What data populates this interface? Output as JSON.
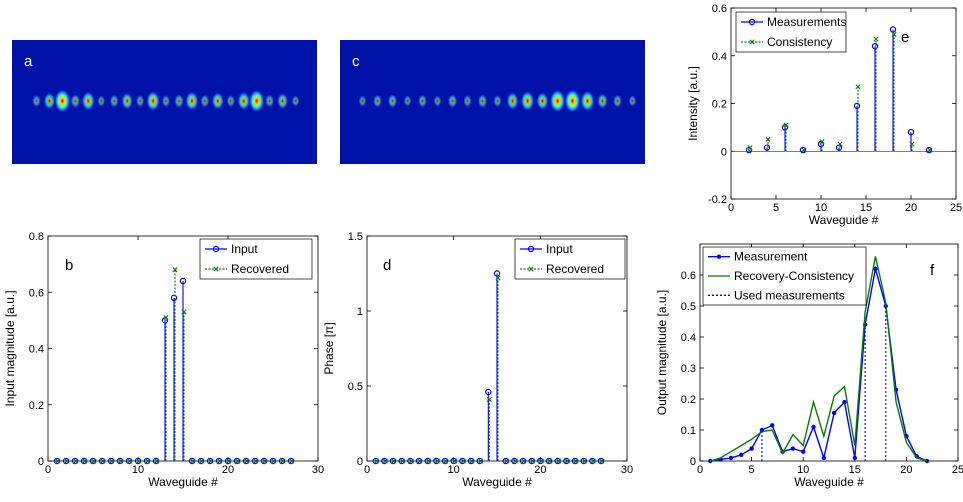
{
  "images": [
    {
      "label": "a",
      "spots": [
        [
          1,
          0.25
        ],
        [
          2,
          0.55
        ],
        [
          3,
          1.0
        ],
        [
          4,
          0.35
        ],
        [
          5,
          0.7
        ],
        [
          6,
          0.2
        ],
        [
          7,
          0.3
        ],
        [
          8,
          0.55
        ],
        [
          9,
          0.25
        ],
        [
          10,
          0.75
        ],
        [
          11,
          0.25
        ],
        [
          12,
          0.35
        ],
        [
          13,
          0.7
        ],
        [
          14,
          0.3
        ],
        [
          15,
          0.6
        ],
        [
          16,
          0.25
        ],
        [
          17,
          0.65
        ],
        [
          18,
          0.95
        ],
        [
          19,
          0.3
        ],
        [
          20,
          0.5
        ],
        [
          21,
          0.2
        ]
      ]
    },
    {
      "label": "c",
      "spots": [
        [
          1,
          0.2
        ],
        [
          2,
          0.3
        ],
        [
          3,
          0.35
        ],
        [
          4,
          0.2
        ],
        [
          5,
          0.3
        ],
        [
          6,
          0.2
        ],
        [
          7,
          0.35
        ],
        [
          8,
          0.25
        ],
        [
          9,
          0.35
        ],
        [
          10,
          0.25
        ],
        [
          11,
          0.6
        ],
        [
          12,
          0.75
        ],
        [
          13,
          0.6
        ],
        [
          14,
          0.95
        ],
        [
          15,
          1.0
        ],
        [
          16,
          0.8
        ],
        [
          17,
          0.45
        ],
        [
          18,
          0.3
        ],
        [
          19,
          0.2
        ]
      ]
    }
  ],
  "chart_data": [
    {
      "panel": "b",
      "type": "stem",
      "xlabel": "Waveguide #",
      "ylabel": "Input magnitude [a.u.]",
      "xlim": [
        0,
        30
      ],
      "ylim": [
        0,
        0.8
      ],
      "xticks": [
        "0",
        "10",
        "20",
        "30"
      ],
      "yticks": [
        "0",
        "0.2",
        "0.4",
        "0.6",
        "0.8"
      ],
      "legend": "top-right",
      "x": [
        1,
        2,
        3,
        4,
        5,
        6,
        7,
        8,
        9,
        10,
        11,
        12,
        13,
        14,
        15,
        16,
        17,
        18,
        19,
        20,
        21,
        22,
        23,
        24,
        25,
        26,
        27
      ],
      "series": [
        {
          "name": "Input",
          "color": "#0000ff",
          "marker": "o",
          "values": [
            0,
            0,
            0,
            0,
            0,
            0,
            0,
            0,
            0,
            0,
            0,
            0,
            0.5,
            0.58,
            0.64,
            0,
            0,
            0,
            0,
            0,
            0,
            0,
            0,
            0,
            0,
            0,
            0
          ]
        },
        {
          "name": "Recovered",
          "color": "#008000",
          "marker": "x",
          "values": [
            0,
            0,
            0,
            0,
            0,
            0,
            0,
            0,
            0,
            0,
            0,
            0,
            0.51,
            0.68,
            0.53,
            0,
            0,
            0,
            0,
            0,
            0,
            0,
            0,
            0,
            0,
            0,
            0
          ]
        }
      ]
    },
    {
      "panel": "d",
      "type": "stem",
      "xlabel": "Waveguide #",
      "ylabel": "Phase [π]",
      "xlim": [
        0,
        30
      ],
      "ylim": [
        0,
        1.5
      ],
      "xticks": [
        "0",
        "10",
        "20",
        "30"
      ],
      "yticks": [
        "0",
        "0.5",
        "1",
        "1.5"
      ],
      "legend": "top-right",
      "x": [
        1,
        2,
        3,
        4,
        5,
        6,
        7,
        8,
        9,
        10,
        11,
        12,
        13,
        14,
        15,
        16,
        17,
        18,
        19,
        20,
        21,
        22,
        23,
        24,
        25,
        26,
        27
      ],
      "series": [
        {
          "name": "Input",
          "color": "#0000ff",
          "marker": "o",
          "values": [
            0,
            0,
            0,
            0,
            0,
            0,
            0,
            0,
            0,
            0,
            0,
            0,
            0,
            0.46,
            1.25,
            0,
            0,
            0,
            0,
            0,
            0,
            0,
            0,
            0,
            0,
            0,
            0
          ]
        },
        {
          "name": "Recovered",
          "color": "#008000",
          "marker": "x",
          "values": [
            0,
            0,
            0,
            0,
            0,
            0,
            0,
            0,
            0,
            0,
            0,
            0,
            0,
            0.41,
            1.22,
            0,
            0,
            0,
            0,
            0,
            0,
            0,
            0,
            0,
            0,
            0,
            0
          ]
        }
      ]
    },
    {
      "panel": "e",
      "type": "stem",
      "xlabel": "Waveguide #",
      "ylabel": "Intensity [a.u.]",
      "xlim": [
        0,
        25
      ],
      "ylim": [
        -0.2,
        0.6
      ],
      "xticks": [
        "0",
        "5",
        "10",
        "15",
        "20",
        "25"
      ],
      "yticks": [
        "-0.2",
        "0",
        "0.2",
        "0.4",
        "0.6"
      ],
      "legend": "top-left",
      "x": [
        2,
        4,
        6,
        8,
        10,
        12,
        14,
        16,
        18,
        20,
        22
      ],
      "series": [
        {
          "name": "Measurements",
          "color": "#0000ff",
          "marker": "o",
          "values": [
            0.005,
            0.015,
            0.1,
            0.005,
            0.03,
            0.015,
            0.19,
            0.44,
            0.51,
            0.08,
            0.005
          ]
        },
        {
          "name": "Consistency",
          "color": "#008000",
          "marker": "x",
          "values": [
            0.015,
            0.05,
            0.11,
            0.005,
            0.04,
            0.03,
            0.27,
            0.47,
            0.49,
            0.03,
            0.005
          ]
        }
      ]
    },
    {
      "panel": "f",
      "type": "line",
      "xlabel": "Waveguide #",
      "ylabel": "Output magnitude [a.u.]",
      "xlim": [
        0,
        25
      ],
      "ylim": [
        0,
        0.7
      ],
      "xticks": [
        "0",
        "5",
        "10",
        "15",
        "20",
        "25"
      ],
      "yticks": [
        "0",
        "0.1",
        "0.2",
        "0.3",
        "0.4",
        "0.5",
        "0.6"
      ],
      "legend": "top-left",
      "x": [
        1,
        2,
        3,
        4,
        5,
        6,
        7,
        8,
        9,
        10,
        11,
        12,
        13,
        14,
        15,
        16,
        17,
        18,
        19,
        20,
        21,
        22
      ],
      "series": [
        {
          "name": "Measurement",
          "color": "#0000ff",
          "style": "solid-marker",
          "values": [
            0,
            0.005,
            0.01,
            0.02,
            0.04,
            0.1,
            0.115,
            0.03,
            0.04,
            0.03,
            0.11,
            0.01,
            0.155,
            0.19,
            0.01,
            0.44,
            0.62,
            0.5,
            0.23,
            0.08,
            0.015,
            0
          ]
        },
        {
          "name": "Recovery-Consistency",
          "color": "#008000",
          "style": "solid",
          "values": [
            0,
            0.01,
            0.03,
            0.05,
            0.07,
            0.095,
            0.1,
            0.025,
            0.085,
            0.05,
            0.19,
            0.08,
            0.21,
            0.24,
            0.05,
            0.48,
            0.66,
            0.51,
            0.19,
            0.06,
            0.01,
            0
          ]
        },
        {
          "name": "Used measurements",
          "color": "#0000ff",
          "style": "dotted-stem",
          "x": [
            6,
            16,
            18
          ],
          "values": [
            0.1,
            0.44,
            0.5
          ]
        }
      ]
    }
  ]
}
